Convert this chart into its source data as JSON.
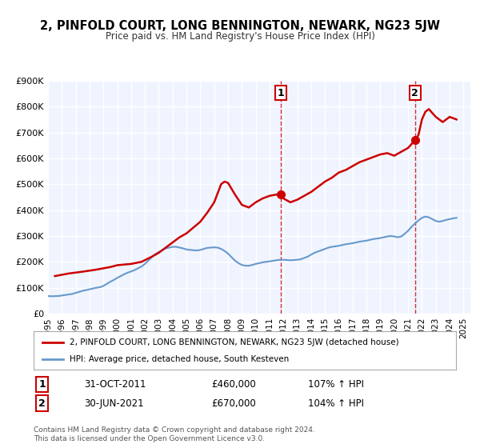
{
  "title": "2, PINFOLD COURT, LONG BENNINGTON, NEWARK, NG23 5JW",
  "subtitle": "Price paid vs. HM Land Registry's House Price Index (HPI)",
  "legend_line1": "2, PINFOLD COURT, LONG BENNINGTON, NEWARK, NG23 5JW (detached house)",
  "legend_line2": "HPI: Average price, detached house, South Kesteven",
  "annotation1_label": "1",
  "annotation1_date": "31-OCT-2011",
  "annotation1_price": "£460,000",
  "annotation1_hpi": "107% ↑ HPI",
  "annotation2_label": "2",
  "annotation2_date": "30-JUN-2021",
  "annotation2_price": "£670,000",
  "annotation2_hpi": "104% ↑ HPI",
  "footer": "Contains HM Land Registry data © Crown copyright and database right 2024.\nThis data is licensed under the Open Government Licence v3.0.",
  "red_color": "#cc0000",
  "blue_color": "#6699cc",
  "background_color": "#f0f4ff",
  "grid_color": "#ffffff",
  "ylim": [
    0,
    900000
  ],
  "xlim_start": 1995.0,
  "xlim_end": 2025.5,
  "marker1_x": 2011.83,
  "marker1_y": 460000,
  "marker2_x": 2021.5,
  "marker2_y": 670000,
  "vline1_x": 2011.83,
  "vline2_x": 2021.5,
  "hpi_data": {
    "years": [
      1995.0,
      1995.25,
      1995.5,
      1995.75,
      1996.0,
      1996.25,
      1996.5,
      1996.75,
      1997.0,
      1997.25,
      1997.5,
      1997.75,
      1998.0,
      1998.25,
      1998.5,
      1998.75,
      1999.0,
      1999.25,
      1999.5,
      1999.75,
      2000.0,
      2000.25,
      2000.5,
      2000.75,
      2001.0,
      2001.25,
      2001.5,
      2001.75,
      2002.0,
      2002.25,
      2002.5,
      2002.75,
      2003.0,
      2003.25,
      2003.5,
      2003.75,
      2004.0,
      2004.25,
      2004.5,
      2004.75,
      2005.0,
      2005.25,
      2005.5,
      2005.75,
      2006.0,
      2006.25,
      2006.5,
      2006.75,
      2007.0,
      2007.25,
      2007.5,
      2007.75,
      2008.0,
      2008.25,
      2008.5,
      2008.75,
      2009.0,
      2009.25,
      2009.5,
      2009.75,
      2010.0,
      2010.25,
      2010.5,
      2010.75,
      2011.0,
      2011.25,
      2011.5,
      2011.75,
      2012.0,
      2012.25,
      2012.5,
      2012.75,
      2013.0,
      2013.25,
      2013.5,
      2013.75,
      2014.0,
      2014.25,
      2014.5,
      2014.75,
      2015.0,
      2015.25,
      2015.5,
      2015.75,
      2016.0,
      2016.25,
      2016.5,
      2016.75,
      2017.0,
      2017.25,
      2017.5,
      2017.75,
      2018.0,
      2018.25,
      2018.5,
      2018.75,
      2019.0,
      2019.25,
      2019.5,
      2019.75,
      2020.0,
      2020.25,
      2020.5,
      2020.75,
      2021.0,
      2021.25,
      2021.5,
      2021.75,
      2022.0,
      2022.25,
      2022.5,
      2022.75,
      2023.0,
      2023.25,
      2023.5,
      2023.75,
      2024.0,
      2024.25,
      2024.5
    ],
    "values": [
      68000,
      67000,
      67500,
      68000,
      70000,
      72000,
      74000,
      76000,
      80000,
      84000,
      88000,
      91000,
      94000,
      97000,
      100000,
      102000,
      107000,
      115000,
      123000,
      130000,
      138000,
      145000,
      152000,
      158000,
      163000,
      168000,
      175000,
      182000,
      192000,
      205000,
      218000,
      230000,
      238000,
      245000,
      252000,
      255000,
      258000,
      258000,
      255000,
      252000,
      248000,
      246000,
      245000,
      244000,
      246000,
      250000,
      254000,
      255000,
      256000,
      255000,
      250000,
      242000,
      232000,
      218000,
      205000,
      195000,
      188000,
      185000,
      185000,
      188000,
      192000,
      195000,
      198000,
      200000,
      202000,
      204000,
      206000,
      208000,
      208000,
      207000,
      206000,
      207000,
      208000,
      210000,
      215000,
      220000,
      228000,
      235000,
      240000,
      245000,
      250000,
      255000,
      258000,
      260000,
      262000,
      265000,
      268000,
      270000,
      272000,
      275000,
      278000,
      280000,
      282000,
      285000,
      288000,
      290000,
      292000,
      295000,
      298000,
      300000,
      298000,
      295000,
      298000,
      308000,
      320000,
      335000,
      348000,
      360000,
      370000,
      375000,
      372000,
      365000,
      358000,
      355000,
      358000,
      362000,
      365000,
      368000,
      370000
    ]
  },
  "price_data": {
    "years": [
      1995.5,
      1996.0,
      1996.5,
      1997.5,
      1998.5,
      1999.0,
      1999.5,
      2000.0,
      2001.0,
      2001.75,
      2002.5,
      2003.0,
      2003.5,
      2004.0,
      2004.5,
      2005.0,
      2006.0,
      2006.5,
      2007.0,
      2007.5,
      2007.75,
      2008.0,
      2008.5,
      2009.0,
      2009.5,
      2010.0,
      2010.5,
      2011.0,
      2011.5,
      2011.83,
      2012.0,
      2012.5,
      2013.0,
      2013.5,
      2014.0,
      2014.5,
      2015.0,
      2015.5,
      2016.0,
      2016.5,
      2017.0,
      2017.5,
      2018.0,
      2018.5,
      2019.0,
      2019.5,
      2020.0,
      2020.5,
      2021.0,
      2021.5,
      2021.75,
      2022.0,
      2022.25,
      2022.5,
      2022.75,
      2023.0,
      2023.5,
      2024.0,
      2024.5
    ],
    "values": [
      145000,
      150000,
      155000,
      162000,
      170000,
      175000,
      180000,
      187000,
      192000,
      200000,
      220000,
      235000,
      255000,
      275000,
      295000,
      310000,
      355000,
      390000,
      430000,
      500000,
      510000,
      505000,
      460000,
      420000,
      410000,
      430000,
      445000,
      455000,
      460000,
      460000,
      445000,
      430000,
      440000,
      455000,
      470000,
      490000,
      510000,
      525000,
      545000,
      555000,
      570000,
      585000,
      595000,
      605000,
      615000,
      620000,
      610000,
      625000,
      640000,
      670000,
      690000,
      750000,
      780000,
      790000,
      775000,
      760000,
      740000,
      760000,
      750000
    ]
  },
  "yticks": [
    0,
    100000,
    200000,
    300000,
    400000,
    500000,
    600000,
    700000,
    800000,
    900000
  ],
  "ytick_labels": [
    "£0",
    "£100K",
    "£200K",
    "£300K",
    "£400K",
    "£500K",
    "£600K",
    "£700K",
    "£800K",
    "£900K"
  ],
  "xticks": [
    1995,
    1996,
    1997,
    1998,
    1999,
    2000,
    2001,
    2002,
    2003,
    2004,
    2005,
    2006,
    2007,
    2008,
    2009,
    2010,
    2011,
    2012,
    2013,
    2014,
    2015,
    2016,
    2017,
    2018,
    2019,
    2020,
    2021,
    2022,
    2023,
    2024,
    2025
  ]
}
